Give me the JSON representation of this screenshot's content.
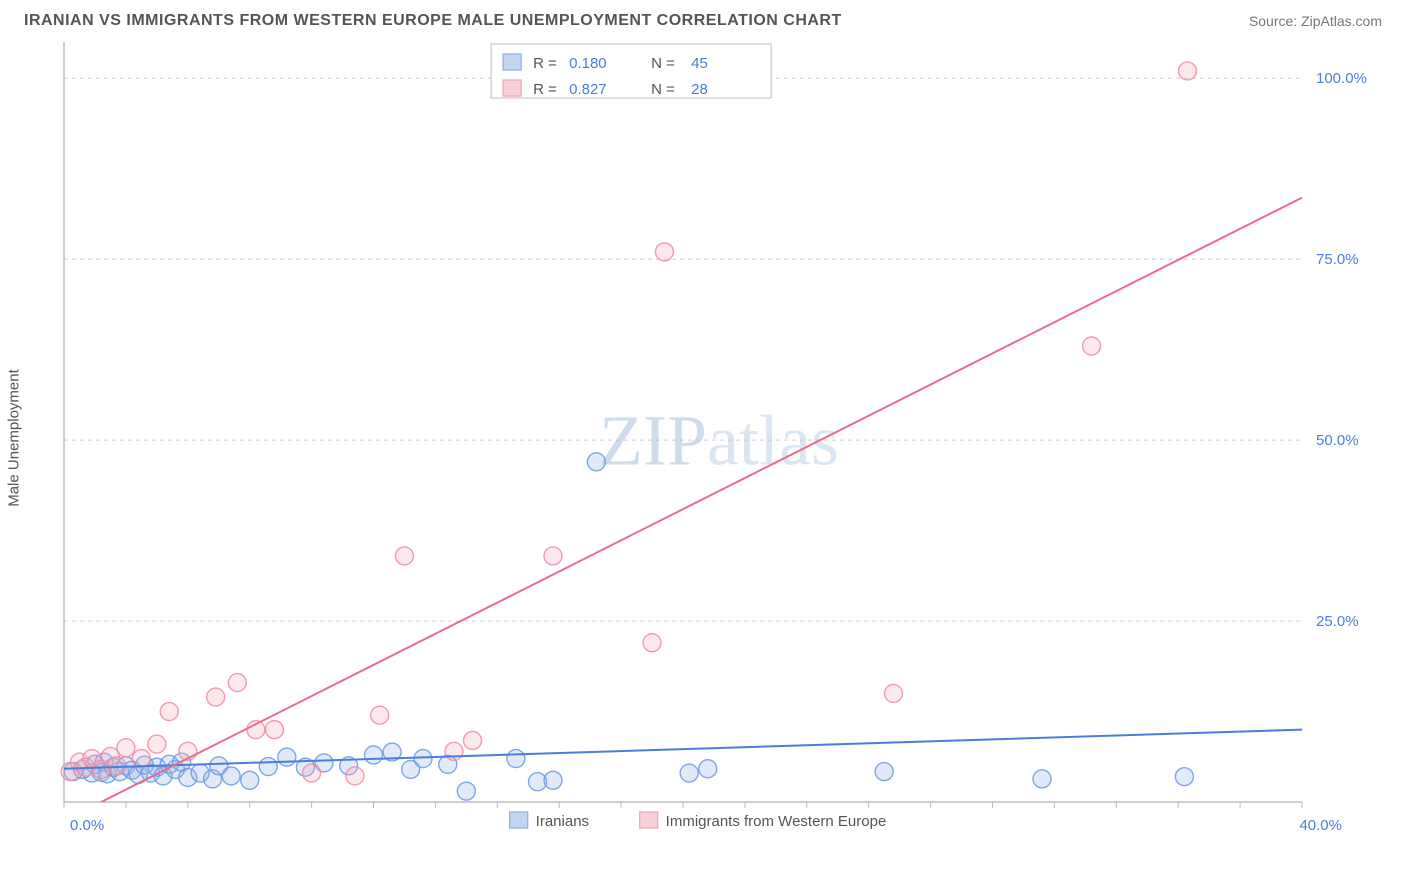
{
  "header": {
    "title": "IRANIAN VS IMMIGRANTS FROM WESTERN EUROPE MALE UNEMPLOYMENT CORRELATION CHART",
    "source": "Source: ZipAtlas.com"
  },
  "ylabel": "Male Unemployment",
  "watermark": {
    "bold": "ZIP",
    "rest": "atlas"
  },
  "chart": {
    "type": "scatter",
    "xlim": [
      0,
      40
    ],
    "ylim": [
      0,
      105
    ],
    "xticks_pct": [
      0.0,
      10.0,
      20.0,
      30.0,
      40.0
    ],
    "yticks_pct": [
      25.0,
      50.0,
      75.0,
      100.0
    ],
    "gridline_color": "#cfcfcf",
    "axis_color": "#bdbdbd",
    "background": "#ffffff",
    "marker_radius": 9,
    "marker_fill_opacity": 0.28,
    "marker_stroke_opacity": 0.85,
    "line_width": 2,
    "top_legend": {
      "series": [
        {
          "swatch": "#8fb4e8",
          "r_label": "R =",
          "r": "0.180",
          "n_label": "N =",
          "n": "45"
        },
        {
          "swatch": "#f2a6b9",
          "r_label": "R =",
          "r": "0.827",
          "n_label": "N =",
          "n": "28"
        }
      ]
    },
    "bottom_legend": {
      "items": [
        {
          "swatch": "#8fb4e8",
          "label": "Iranians"
        },
        {
          "swatch": "#f2a6b9",
          "label": "Immigrants from Western Europe"
        }
      ]
    },
    "series": [
      {
        "name": "Iranians",
        "color": "#4a7edb",
        "marker_stroke": "#6a98e3",
        "marker_fill": "#8fb4e8",
        "regression": {
          "x0": 0,
          "y0": 4.6,
          "x1": 40,
          "y1": 10.0
        },
        "points": [
          [
            0.3,
            4.2
          ],
          [
            0.6,
            4.5
          ],
          [
            0.9,
            4.0
          ],
          [
            1.0,
            5.2
          ],
          [
            1.2,
            4.1
          ],
          [
            1.3,
            5.5
          ],
          [
            1.4,
            3.9
          ],
          [
            1.6,
            4.8
          ],
          [
            1.8,
            4.2
          ],
          [
            2.0,
            5.0
          ],
          [
            2.2,
            4.4
          ],
          [
            2.4,
            3.8
          ],
          [
            2.6,
            5.1
          ],
          [
            2.8,
            4.0
          ],
          [
            3.0,
            4.8
          ],
          [
            3.2,
            3.6
          ],
          [
            3.4,
            5.2
          ],
          [
            3.6,
            4.5
          ],
          [
            3.8,
            5.5
          ],
          [
            4.0,
            3.4
          ],
          [
            4.4,
            4.0
          ],
          [
            4.8,
            3.2
          ],
          [
            5.0,
            5.0
          ],
          [
            5.4,
            3.6
          ],
          [
            6.0,
            3.0
          ],
          [
            6.6,
            4.9
          ],
          [
            7.2,
            6.2
          ],
          [
            7.8,
            4.8
          ],
          [
            8.4,
            5.4
          ],
          [
            9.2,
            5.0
          ],
          [
            10.0,
            6.5
          ],
          [
            10.6,
            6.9
          ],
          [
            11.2,
            4.5
          ],
          [
            11.6,
            6.0
          ],
          [
            12.4,
            5.2
          ],
          [
            13.0,
            1.5
          ],
          [
            14.6,
            6.0
          ],
          [
            15.3,
            2.8
          ],
          [
            15.8,
            3.0
          ],
          [
            17.2,
            47.0
          ],
          [
            20.2,
            4.0
          ],
          [
            20.8,
            4.6
          ],
          [
            26.5,
            4.2
          ],
          [
            31.6,
            3.2
          ],
          [
            36.2,
            3.5
          ]
        ]
      },
      {
        "name": "Immigrants from Western Europe",
        "color": "#e86d8c",
        "marker_stroke": "#f08aa3",
        "marker_fill": "#f4b0c0",
        "regression": {
          "x0": 1.2,
          "y0": 0,
          "x1": 40,
          "y1": 83.5
        },
        "points": [
          [
            0.2,
            4.2
          ],
          [
            0.5,
            5.5
          ],
          [
            0.7,
            4.8
          ],
          [
            0.9,
            6.0
          ],
          [
            1.2,
            4.5
          ],
          [
            1.5,
            6.3
          ],
          [
            1.7,
            5.0
          ],
          [
            2.0,
            7.5
          ],
          [
            2.5,
            6.0
          ],
          [
            3.0,
            8.0
          ],
          [
            3.4,
            12.5
          ],
          [
            4.0,
            7.0
          ],
          [
            4.9,
            14.5
          ],
          [
            5.6,
            16.5
          ],
          [
            6.2,
            10.0
          ],
          [
            6.8,
            10.0
          ],
          [
            8.0,
            4.0
          ],
          [
            9.4,
            3.6
          ],
          [
            10.2,
            12.0
          ],
          [
            11.0,
            34.0
          ],
          [
            12.6,
            7.0
          ],
          [
            13.2,
            8.5
          ],
          [
            15.8,
            34.0
          ],
          [
            19.0,
            22.0
          ],
          [
            19.4,
            76.0
          ],
          [
            26.8,
            15.0
          ],
          [
            33.2,
            63.0
          ],
          [
            36.3,
            101.0
          ]
        ]
      }
    ]
  }
}
